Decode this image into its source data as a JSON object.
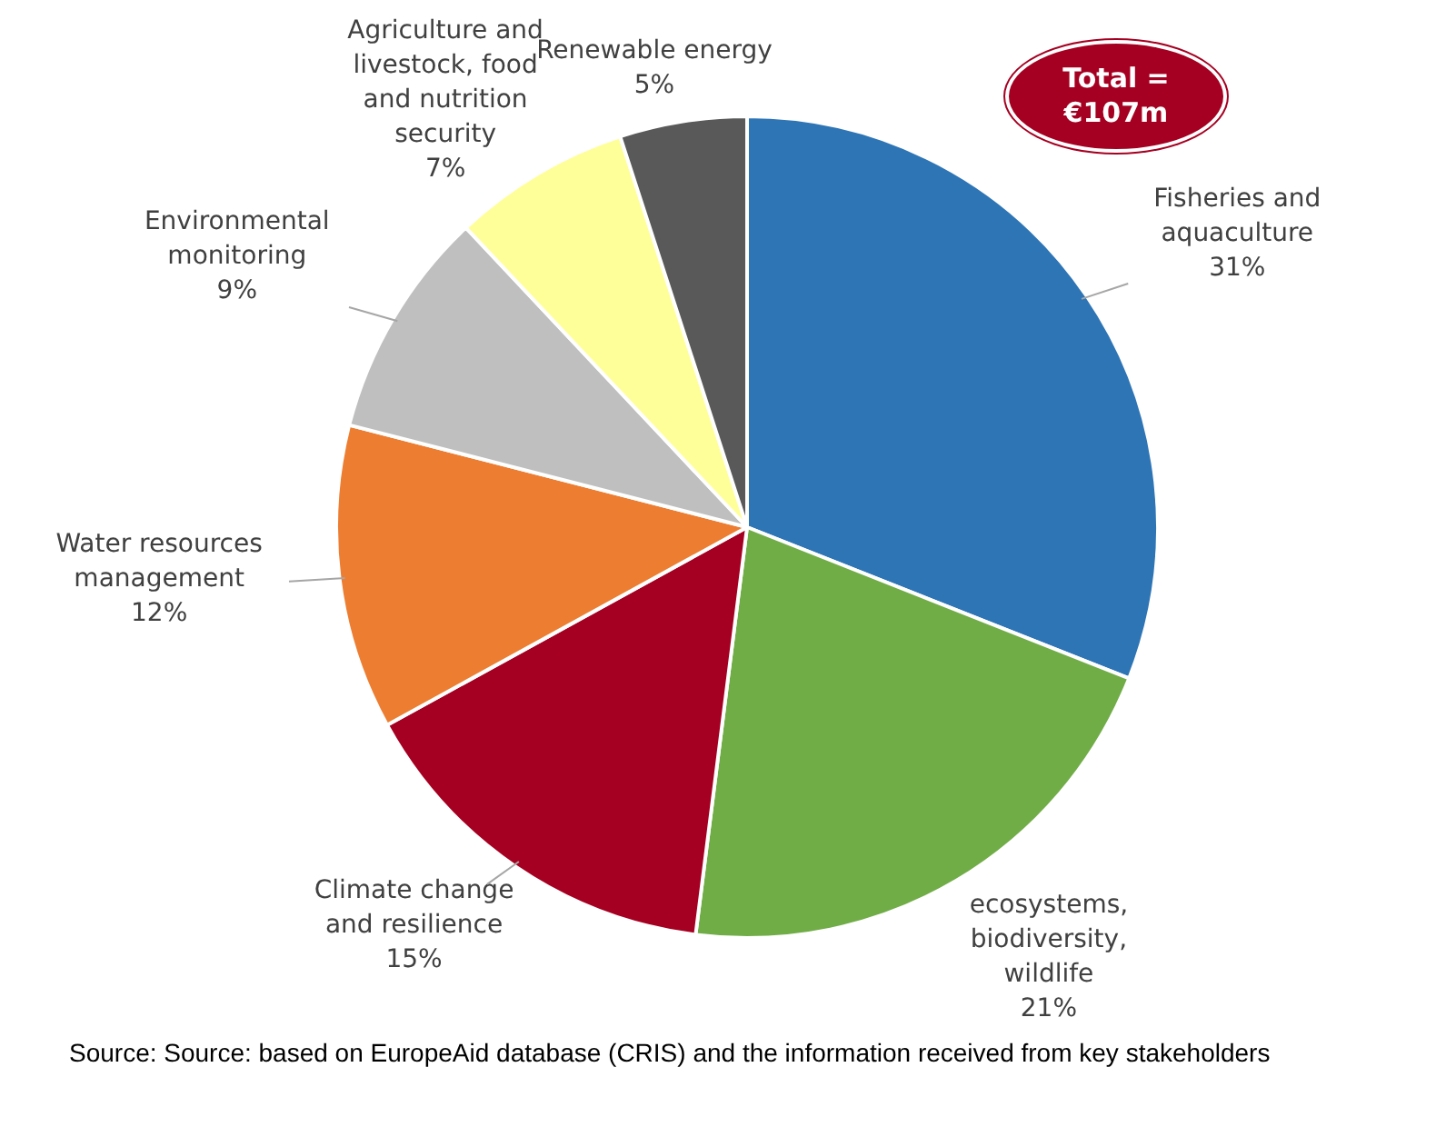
{
  "chart_data": {
    "type": "pie",
    "categories": [
      "Fisheries and aquaculture",
      "ecosystems, biodiversity, wildlife",
      "Climate change and resilience",
      "Water resources management",
      "Environmental monitoring",
      "Agriculture and livestock, food and nutrition security",
      "Renewable energy"
    ],
    "values": [
      31,
      21,
      15,
      12,
      9,
      7,
      5
    ],
    "value_labels": [
      "31%",
      "21%",
      "15%",
      "12%",
      "9%",
      "7%",
      "5%"
    ],
    "colors": [
      "#2e75b6",
      "#70ad47",
      "#a50021",
      "#ed7d31",
      "#bfbfbf",
      "#ffff99",
      "#595959"
    ],
    "annotations": [
      "Total = €107m",
      "Source: Source: based on EuropeAid database (CRIS) and the information received from key stakeholders"
    ],
    "legend": false
  }
}
